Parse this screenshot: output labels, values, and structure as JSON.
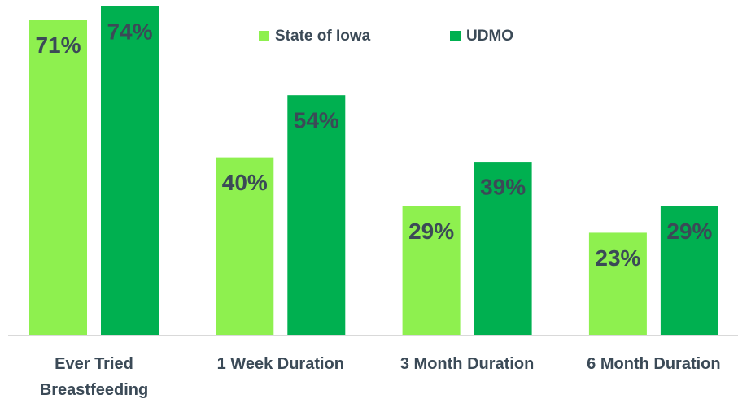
{
  "chart_data": {
    "type": "bar",
    "categories": [
      "Ever Tried Breastfeeding",
      "1 Week Duration",
      "3 Month Duration",
      "6 Month Duration"
    ],
    "series": [
      {
        "name": "State of Iowa",
        "color": "#8ef04f",
        "values": [
          71,
          40,
          29,
          23
        ],
        "value_labels": [
          "71%",
          "40%",
          "29%",
          "23%"
        ]
      },
      {
        "name": "UDMO",
        "color": "#00b050",
        "values": [
          74,
          54,
          39,
          29
        ],
        "value_labels": [
          "74%",
          "54%",
          "39%",
          "29%"
        ]
      }
    ],
    "ylim": [
      0,
      74
    ]
  }
}
